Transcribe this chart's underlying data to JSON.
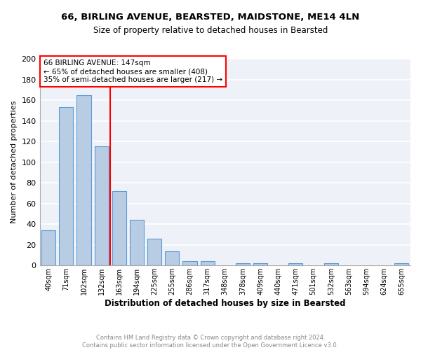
{
  "title1": "66, BIRLING AVENUE, BEARSTED, MAIDSTONE, ME14 4LN",
  "title2": "Size of property relative to detached houses in Bearsted",
  "xlabel": "Distribution of detached houses by size in Bearsted",
  "ylabel": "Number of detached properties",
  "categories": [
    "40sqm",
    "71sqm",
    "102sqm",
    "132sqm",
    "163sqm",
    "194sqm",
    "225sqm",
    "255sqm",
    "286sqm",
    "317sqm",
    "348sqm",
    "378sqm",
    "409sqm",
    "440sqm",
    "471sqm",
    "501sqm",
    "532sqm",
    "563sqm",
    "594sqm",
    "624sqm",
    "655sqm"
  ],
  "values": [
    34,
    153,
    165,
    115,
    72,
    44,
    26,
    14,
    4,
    4,
    0,
    2,
    2,
    0,
    2,
    0,
    2,
    0,
    0,
    0,
    2
  ],
  "bar_color": "#b8cce4",
  "bar_edge_color": "#5b9bd5",
  "bg_color": "#eef2f8",
  "grid_color": "#ffffff",
  "property_label": "66 BIRLING AVENUE: 147sqm",
  "annotation_line1": "← 65% of detached houses are smaller (408)",
  "annotation_line2": "35% of semi-detached houses are larger (217) →",
  "footer1": "Contains HM Land Registry data © Crown copyright and database right 2024.",
  "footer2": "Contains public sector information licensed under the Open Government Licence v3.0.",
  "ylim": [
    0,
    200
  ],
  "yticks": [
    0,
    20,
    40,
    60,
    80,
    100,
    120,
    140,
    160,
    180,
    200
  ]
}
